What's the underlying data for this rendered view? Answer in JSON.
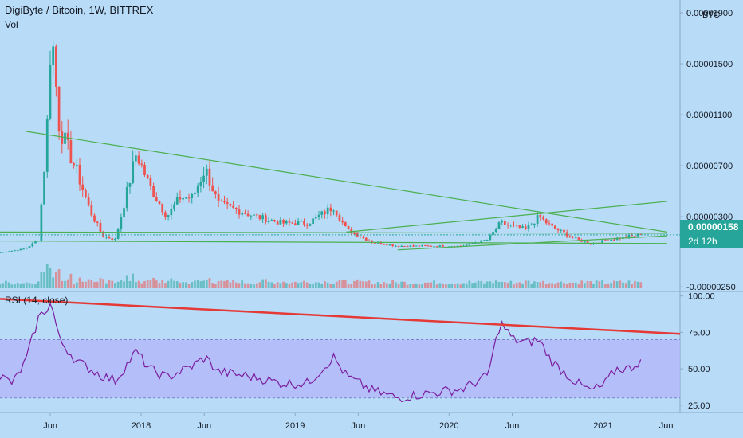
{
  "header": {
    "symbol": "DigiByte / Bitcoin, 1W, BITTREX",
    "volume_label": "Vol",
    "rsi_label": "RSI (14, close)",
    "currency_label": "BTC"
  },
  "price_badge": {
    "value": "0.00000158",
    "countdown": "2d 12h"
  },
  "colors": {
    "up": "#26a69a",
    "down": "#ef5350",
    "trendline": "#4caf50",
    "rsi_line": "#7b1fa2",
    "rsi_trend": "#e53935",
    "rsi_band": "#b3b7f7"
  },
  "chart_data": [
    {
      "type": "candlestick",
      "title": "DigiByte / Bitcoin, 1W, BITTREX",
      "y_ticks": [
        "0.00001900",
        "0.00001500",
        "0.00001100",
        "0.00000700",
        "0.00000300",
        "-0.00000250"
      ],
      "x_ticks": [
        "Jun",
        "2018",
        "Jun",
        "2019",
        "Jun",
        "2020",
        "Jun",
        "2021",
        "Jun"
      ],
      "x_range": [
        "2017-02",
        "2021-07"
      ],
      "y_range": [
        -2.8e-06,
        1.95e-05
      ],
      "last_price": 1.58e-06,
      "weekly_close_anchors": [
        [
          "2017-02",
          2e-07
        ],
        [
          "2017-04",
          5e-07
        ],
        [
          "2017-05",
          1.2e-06
        ],
        [
          "2017-05-20",
          9e-06
        ],
        [
          "2017-06-01",
          1.8e-05
        ],
        [
          "2017-06-20",
          1e-05
        ],
        [
          "2017-08",
          6.5e-06
        ],
        [
          "2017-09",
          3.5e-06
        ],
        [
          "2017-10",
          1.5e-06
        ],
        [
          "2017-11",
          1.2e-06
        ],
        [
          "2017-12-20",
          8e-06
        ],
        [
          "2018-01-20",
          5.5e-06
        ],
        [
          "2018-03",
          3e-06
        ],
        [
          "2018-04",
          4.5e-06
        ],
        [
          "2018-05",
          4.5e-06
        ],
        [
          "2018-06",
          6.8e-06
        ],
        [
          "2018-07",
          4e-06
        ],
        [
          "2018-10",
          3e-06
        ],
        [
          "2018-12",
          2.5e-06
        ],
        [
          "2019-02",
          2.5e-06
        ],
        [
          "2019-04",
          3.8e-06
        ],
        [
          "2019-05",
          2e-06
        ],
        [
          "2019-07",
          1e-06
        ],
        [
          "2019-09",
          7e-07
        ],
        [
          "2019-12",
          7e-07
        ],
        [
          "2020-02",
          7e-07
        ],
        [
          "2020-04",
          1.2e-06
        ],
        [
          "2020-05",
          2.5e-06
        ],
        [
          "2020-07",
          2e-06
        ],
        [
          "2020-08",
          3e-06
        ],
        [
          "2020-09",
          2.2e-06
        ],
        [
          "2020-11",
          1.2e-06
        ],
        [
          "2020-12",
          9e-07
        ],
        [
          "2021-02",
          1.3e-06
        ],
        [
          "2021-04",
          1.58e-06
        ]
      ],
      "trendlines": [
        {
          "from": [
            "2017-04",
            9.7e-06
          ],
          "to": [
            "2021-06",
            1.8e-06
          ]
        },
        {
          "from": [
            "2019-05",
            1.8e-06
          ],
          "to": [
            "2021-06",
            4.2e-06
          ]
        },
        {
          "from": [
            "2019-09",
            4e-07
          ],
          "to": [
            "2021-06",
            1.5e-06
          ]
        },
        {
          "from": [
            "2017-02",
            1.1e-06
          ],
          "to": [
            "2021-06",
            9e-07
          ]
        },
        {
          "from": [
            "2017-02",
            1.8e-06
          ],
          "to": [
            "2021-06",
            1.7e-06
          ]
        }
      ]
    },
    {
      "type": "line",
      "title": "RSI (14, close)",
      "y_ticks": [
        "100.00",
        "75.00",
        "50.00",
        "25.00"
      ],
      "y_range": [
        20,
        102
      ],
      "band": [
        30,
        70
      ],
      "rsi_anchors": [
        [
          "2017-02",
          45
        ],
        [
          "2017-03",
          40
        ],
        [
          "2017-04",
          55
        ],
        [
          "2017-05",
          85
        ],
        [
          "2017-06-01",
          95
        ],
        [
          "2017-06-20",
          70
        ],
        [
          "2017-08",
          55
        ],
        [
          "2017-10",
          45
        ],
        [
          "2017-11",
          42
        ],
        [
          "2017-12-20",
          62
        ],
        [
          "2018-01-20",
          50
        ],
        [
          "2018-03",
          44
        ],
        [
          "2018-05",
          52
        ],
        [
          "2018-06",
          58
        ],
        [
          "2018-07",
          48
        ],
        [
          "2018-10",
          44
        ],
        [
          "2018-12",
          40
        ],
        [
          "2019-02",
          40
        ],
        [
          "2019-04",
          58
        ],
        [
          "2019-05",
          45
        ],
        [
          "2019-07",
          35
        ],
        [
          "2019-09",
          30
        ],
        [
          "2019-12",
          34
        ],
        [
          "2020-02",
          36
        ],
        [
          "2020-04",
          45
        ],
        [
          "2020-05",
          82
        ],
        [
          "2020-06",
          70
        ],
        [
          "2020-07",
          68
        ],
        [
          "2020-08",
          70
        ],
        [
          "2020-09",
          55
        ],
        [
          "2020-11",
          40
        ],
        [
          "2020-12",
          35
        ],
        [
          "2021-01",
          38
        ],
        [
          "2021-02",
          50
        ],
        [
          "2021-03",
          50
        ],
        [
          "2021-04",
          56
        ]
      ],
      "trendline": {
        "from": [
          "2017-02",
          98
        ],
        "to": [
          "2021-07",
          74
        ]
      }
    }
  ]
}
